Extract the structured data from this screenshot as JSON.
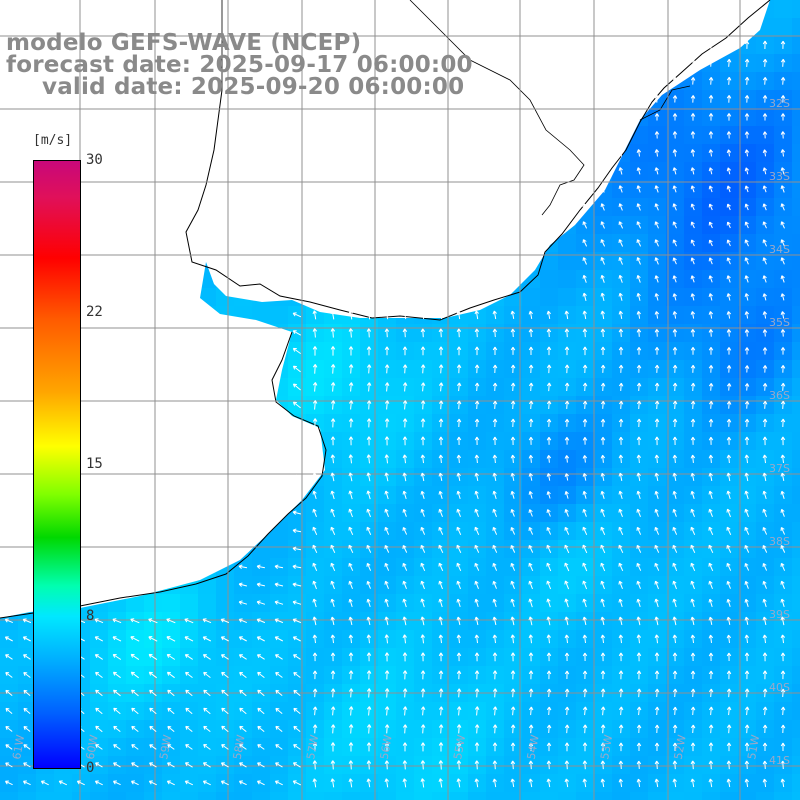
{
  "title": {
    "line1": "modelo GEFS-WAVE (NCEP)",
    "line2": "forecast date: 2025-09-17 06:00:00",
    "line3": "valid date: 2025-09-20 06:00:00"
  },
  "colorbar": {
    "unit": "[m/s]",
    "ticks": [
      "30",
      "22",
      "15",
      "8",
      "0"
    ],
    "tick_values": [
      30,
      22,
      15,
      8,
      0
    ],
    "range": [
      0,
      30
    ],
    "colors": [
      "#0000ff",
      "#0060ff",
      "#00b0ff",
      "#00e8ff",
      "#00ffb0",
      "#00d800",
      "#7fff00",
      "#ffff00",
      "#ffa500",
      "#ff5a00",
      "#ff0000",
      "#e0105a",
      "#c8087a"
    ]
  },
  "map": {
    "lat_labels": [
      "32S",
      "33S",
      "34S",
      "35S",
      "36S",
      "37S",
      "38S",
      "39S",
      "40S",
      "41S"
    ],
    "lon_labels": [
      "61W",
      "60W",
      "59W",
      "58W",
      "57W",
      "56W",
      "55W",
      "54W",
      "53W",
      "52W",
      "51W"
    ],
    "land_color": "#ffffff",
    "grid_color": "#909090",
    "arrow_color": "#ffffff"
  }
}
